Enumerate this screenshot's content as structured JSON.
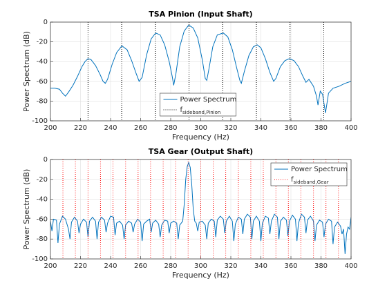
{
  "chart_data": [
    {
      "type": "line",
      "title": "TSA Pinion (Input Shaft)",
      "xlabel": "Frequency (Hz)",
      "ylabel": "Power Spectrum (dB)",
      "xlim": [
        200,
        400
      ],
      "xticks": [
        200,
        220,
        240,
        260,
        280,
        300,
        320,
        340,
        360,
        380,
        400
      ],
      "ylim": [
        -100,
        0
      ],
      "yticks": [
        -100,
        -80,
        -60,
        -40,
        -20,
        0
      ],
      "grid": true,
      "legend": "south",
      "series": [
        {
          "name": "Power Spectrum",
          "color": "#0072bd",
          "style": "line",
          "x": [
            200,
            203,
            206,
            208,
            210,
            212,
            215,
            218,
            221,
            223,
            225,
            227,
            230,
            233,
            235,
            236.5,
            238,
            241,
            244,
            247.5,
            251,
            254,
            257,
            259,
            261,
            264,
            267,
            270,
            273,
            276,
            279,
            281,
            282,
            283.5,
            286,
            289,
            292,
            295,
            298,
            301,
            303,
            304,
            305.5,
            308,
            311,
            315,
            318,
            321,
            324,
            326,
            327,
            329,
            332,
            335,
            337.5,
            340,
            343,
            346,
            348.5,
            350,
            353,
            356,
            359,
            362,
            365,
            368,
            370,
            372,
            375,
            377,
            378,
            379.5,
            381,
            383,
            385,
            388,
            392,
            396,
            400
          ],
          "values": [
            -67,
            -67,
            -68,
            -72,
            -75,
            -71,
            -64,
            -55,
            -45,
            -40,
            -37,
            -38,
            -44,
            -53,
            -60,
            -62,
            -58,
            -43,
            -31,
            -24,
            -28,
            -39,
            -52,
            -60,
            -56,
            -33,
            -17,
            -11,
            -13,
            -23,
            -40,
            -55,
            -64,
            -52,
            -25,
            -9,
            -3,
            -6,
            -16,
            -38,
            -57,
            -59,
            -47,
            -25,
            -13,
            -11,
            -15,
            -28,
            -47,
            -59,
            -62,
            -50,
            -34,
            -25,
            -23,
            -26,
            -37,
            -51,
            -60,
            -57,
            -45,
            -39,
            -37,
            -39,
            -45,
            -55,
            -61,
            -58,
            -65,
            -75,
            -84,
            -70,
            -73,
            -92,
            -72,
            -67,
            -65,
            -62,
            -60
          ]
        },
        {
          "name": "f",
          "name_subscript": "sideband,Pinion",
          "color": "#000000",
          "style": "vlines",
          "x": [
            225,
            247.4,
            269.8,
            292.2,
            314.6,
            337,
            359.4,
            381.8
          ]
        }
      ]
    },
    {
      "type": "line",
      "title": "TSA Gear (Output Shaft)",
      "xlabel": "Frequency (Hz)",
      "ylabel": "Power Spectrum (dB)",
      "xlim": [
        200,
        400
      ],
      "xticks": [
        200,
        220,
        240,
        260,
        280,
        300,
        320,
        340,
        360,
        380,
        400
      ],
      "ylim": [
        -100,
        0
      ],
      "yticks": [
        -100,
        -80,
        -60,
        -40,
        -20,
        0
      ],
      "grid": true,
      "legend": "northeast",
      "series": [
        {
          "name": "Power Spectrum",
          "color": "#0072bd",
          "style": "line",
          "x": [
            200,
            201,
            202,
            204,
            205,
            206,
            208,
            210,
            212,
            213,
            214,
            216,
            218,
            219,
            220,
            222,
            224,
            225,
            226,
            228,
            230,
            231,
            232,
            234,
            236,
            237,
            238,
            240,
            242,
            243,
            244,
            246,
            248,
            249,
            250,
            252,
            254,
            255,
            256,
            258,
            260,
            261,
            262,
            264,
            266,
            267,
            268,
            270,
            272,
            273,
            274,
            276,
            278,
            279,
            280,
            282,
            284,
            285,
            286,
            288,
            289,
            290,
            291,
            292,
            293,
            294,
            295,
            296,
            297,
            298,
            299,
            301,
            303,
            304,
            305,
            307,
            309,
            310,
            311,
            313,
            315,
            316,
            317,
            319,
            321,
            322,
            323,
            325,
            327,
            328,
            329,
            331,
            333,
            334,
            335,
            337,
            339,
            340,
            341,
            343,
            345,
            346,
            347,
            349,
            351,
            352,
            353,
            355,
            357,
            358,
            359,
            361,
            363,
            364,
            365,
            367,
            369,
            370,
            371,
            373,
            375,
            376,
            377,
            379,
            381,
            382,
            383,
            385,
            387,
            388,
            389,
            391,
            393,
            394,
            395,
            396,
            397,
            398,
            399,
            400
          ],
          "values": [
            -62,
            -72,
            -60,
            -61,
            -84,
            -65,
            -57,
            -60,
            -70,
            -80,
            -63,
            -58,
            -62,
            -74,
            -65,
            -60,
            -63,
            -78,
            -62,
            -58,
            -62,
            -80,
            -63,
            -58,
            -61,
            -73,
            -64,
            -57,
            -58,
            -76,
            -64,
            -62,
            -66,
            -80,
            -66,
            -62,
            -64,
            -73,
            -65,
            -60,
            -63,
            -82,
            -65,
            -62,
            -60,
            -73,
            -64,
            -61,
            -65,
            -78,
            -66,
            -61,
            -62,
            -74,
            -64,
            -62,
            -64,
            -80,
            -66,
            -62,
            -45,
            -20,
            -7,
            -3,
            -8,
            -25,
            -50,
            -62,
            -64,
            -72,
            -63,
            -62,
            -66,
            -80,
            -64,
            -60,
            -62,
            -78,
            -61,
            -57,
            -60,
            -74,
            -62,
            -57,
            -62,
            -82,
            -65,
            -58,
            -60,
            -75,
            -60,
            -55,
            -58,
            -80,
            -62,
            -57,
            -62,
            -82,
            -64,
            -57,
            -59,
            -75,
            -62,
            -55,
            -58,
            -80,
            -62,
            -58,
            -61,
            -77,
            -62,
            -56,
            -60,
            -82,
            -64,
            -55,
            -58,
            -74,
            -61,
            -57,
            -62,
            -82,
            -66,
            -61,
            -63,
            -78,
            -65,
            -60,
            -62,
            -85,
            -68,
            -63,
            -67,
            -75,
            -70,
            -95,
            -75,
            -68,
            -70,
            -58
          ]
        },
        {
          "name": "f",
          "name_subscript": "sideband,Gear",
          "color": "#ff0000",
          "style": "vlines",
          "x": [
            208.3,
            216.6,
            225,
            233.3,
            241.6,
            250,
            258.3,
            266.6,
            275,
            283.3,
            291.6,
            300,
            308.3,
            316.6,
            325,
            333.3,
            341.6,
            350,
            358.3,
            366.6,
            375,
            383.3,
            391.6
          ]
        }
      ]
    }
  ]
}
